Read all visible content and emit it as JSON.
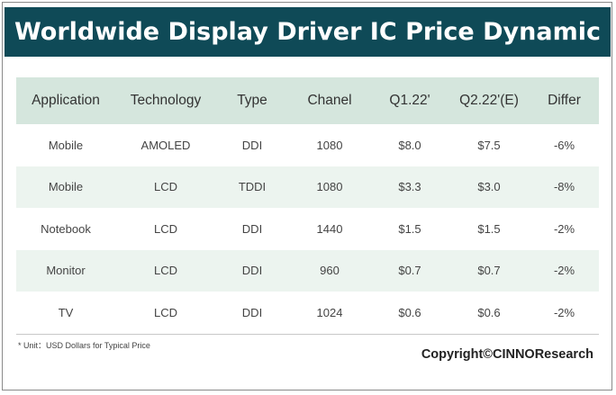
{
  "title": "Worldwide Display Driver IC Price Dynamic",
  "table": {
    "headers": [
      "Application",
      "Technology",
      "Type",
      "Chanel",
      "Q1.22'",
      "Q2.22'(E)",
      "Differ"
    ],
    "rows": [
      [
        "Mobile",
        "AMOLED",
        "DDI",
        "1080",
        "$8.0",
        "$7.5",
        "-6%"
      ],
      [
        "Mobile",
        "LCD",
        "TDDI",
        "1080",
        "$3.3",
        "$3.0",
        "-8%"
      ],
      [
        "Notebook",
        "LCD",
        "DDI",
        "1440",
        "$1.5",
        "$1.5",
        "-2%"
      ],
      [
        "Monitor",
        "LCD",
        "DDI",
        "960",
        "$0.7",
        "$0.7",
        "-2%"
      ],
      [
        "TV",
        "LCD",
        "DDI",
        "1024",
        "$0.6",
        "$0.6",
        "-2%"
      ]
    ]
  },
  "footnote": "* Unit：USD Dollars for Typical Price",
  "copyright": "Copyright©CINNOResearch",
  "colors": {
    "title_bg": "#0f4a57",
    "header_bg": "#d5e6dd",
    "alt_row_bg": "#ecf4ef"
  }
}
